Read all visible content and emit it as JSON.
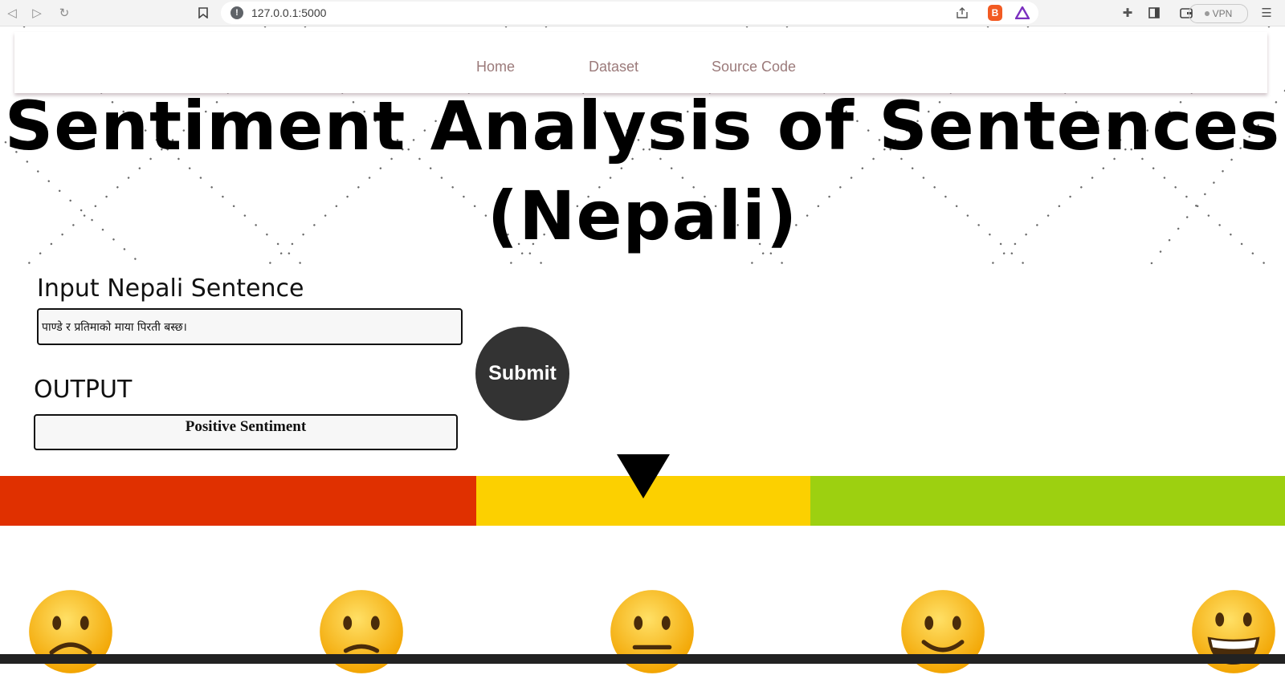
{
  "browser": {
    "url": "127.0.0.1:5000",
    "vpn_label": "VPN",
    "brave_label": "B"
  },
  "nav": {
    "items": [
      "Home",
      "Dataset",
      "Source Code"
    ],
    "colors": {
      "link": "#9b7a7a"
    }
  },
  "header": {
    "title_line1": "Sentiment Analysis of Sentences",
    "title_line2": "(Nepali)"
  },
  "form": {
    "input_label": "Input Nepali Sentence",
    "input_value": "पाण्डे र प्रतिमाको माया पिरती बस्छ।",
    "submit_label": "Submit",
    "output_label": "OUTPUT",
    "output_value": "Positive Sentiment"
  },
  "meter": {
    "segments": [
      {
        "sentiment": "negative",
        "color": "#e03000"
      },
      {
        "sentiment": "neutral",
        "color": "#fcd000"
      },
      {
        "sentiment": "positive",
        "color": "#9dd010"
      }
    ],
    "emojis": [
      "sad-face-icon",
      "frowning-face-icon",
      "neutral-face-icon",
      "slightly-smiling-face-icon",
      "grinning-face-icon"
    ]
  }
}
